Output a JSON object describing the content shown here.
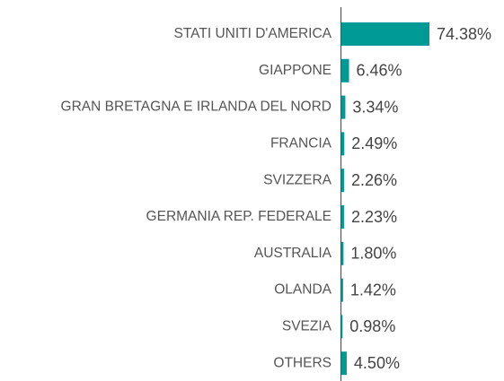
{
  "chart_data": {
    "type": "hbar",
    "categories": [
      "STATI UNITI D'AMERICA",
      "GIAPPONE",
      "GRAN BRETAGNA E IRLANDA DEL NORD",
      "FRANCIA",
      "SVIZZERA",
      "GERMANIA REP. FEDERALE",
      "AUSTRALIA",
      "OLANDA",
      "SVEZIA",
      "OTHERS"
    ],
    "values": [
      74.38,
      6.46,
      3.34,
      2.49,
      2.26,
      2.23,
      1.8,
      1.42,
      0.98,
      4.5
    ],
    "value_labels": [
      "74.38%",
      "6.46%",
      "3.34%",
      "2.49%",
      "2.26%",
      "2.23%",
      "1.80%",
      "1.42%",
      "0.98%",
      "4.50%"
    ],
    "color": "#009a96"
  }
}
